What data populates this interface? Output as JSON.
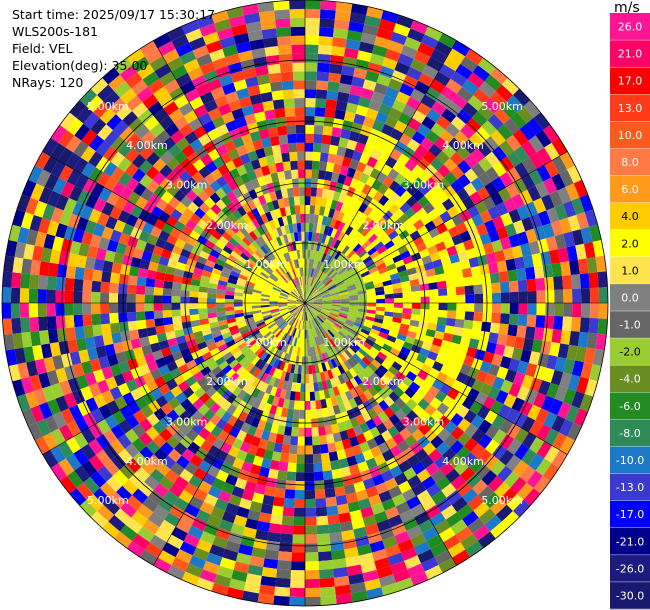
{
  "info": {
    "start_time": "Start time: 2025/09/17 15:30:17",
    "site": "WLS200s-181",
    "field": "Field: VEL",
    "elevation": "Elevation(deg): 35.00",
    "nrays": "NRays: 120"
  },
  "colorbar": {
    "unit": "m/s",
    "ticks": [
      "26.0",
      "21.0",
      "17.0",
      "13.0",
      "10.0",
      "8.0",
      "6.0",
      "4.0",
      "2.0",
      "1.0",
      "0.0",
      "-1.0",
      "-2.0",
      "-4.0",
      "-6.0",
      "-8.0",
      "-10.0",
      "-13.0",
      "-17.0",
      "-21.0",
      "-26.0",
      "-30.0"
    ],
    "colors": [
      "#ff1493",
      "#ff0066",
      "#ff0000",
      "#ff3b1a",
      "#ff5a1e",
      "#ff7a45",
      "#ff9a1a",
      "#ffcc00",
      "#ffff00",
      "#ffe44d",
      "#808080",
      "#666666",
      "#9acd32",
      "#6b8e23",
      "#228b22",
      "#2e8b57",
      "#1e78c8",
      "#3a3ad0",
      "#0000ff",
      "#00008b",
      "#1c1c80",
      "#191970"
    ]
  },
  "chart_data": {
    "type": "ppi_scan",
    "field": "VEL",
    "units": "m/s",
    "elevation_deg": 35.0,
    "n_rays": 120,
    "range_rings": [
      {
        "label": "1.00km"
      },
      {
        "label": "2.00km"
      },
      {
        "label": "3.00km"
      },
      {
        "label": "4.00km"
      },
      {
        "label": "5.00km"
      }
    ],
    "colorscale_bounds": [
      -30.0,
      26.0
    ]
  }
}
